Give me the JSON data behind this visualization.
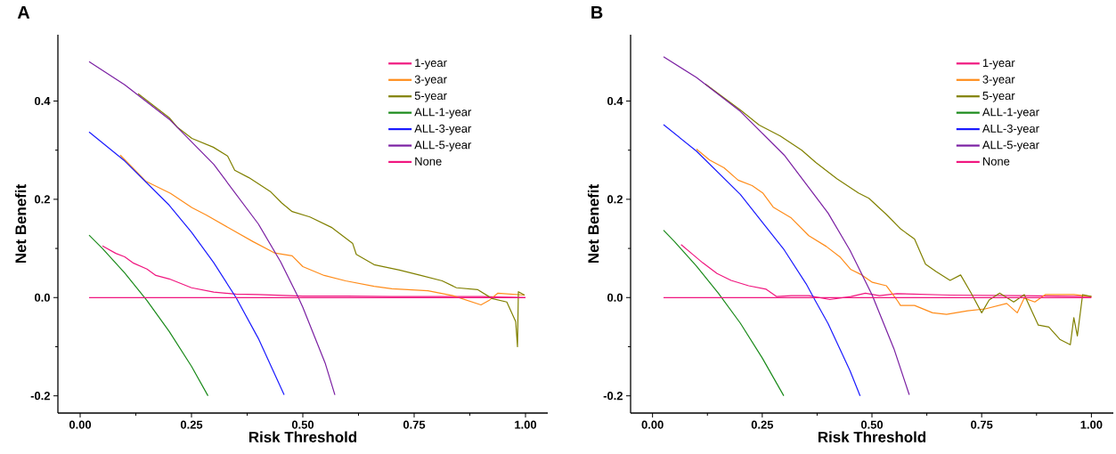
{
  "chart_data": [
    {
      "type": "line",
      "title": "A",
      "xlabel": "Risk Threshold",
      "ylabel": "Net Benefit",
      "xlim": [
        -0.05,
        1.05
      ],
      "ylim": [
        -0.235,
        0.535
      ],
      "xticks": [
        {
          "value": 0,
          "label": "0.00"
        },
        {
          "value": 0.25,
          "label": "0.25"
        },
        {
          "value": 0.5,
          "label": "0.50"
        },
        {
          "value": 0.75,
          "label": "0.75"
        },
        {
          "value": 1,
          "label": "1.00"
        }
      ],
      "yticks": [
        {
          "value": -0.2,
          "label": "-0.2"
        },
        {
          "value": 0,
          "label": "0.0"
        },
        {
          "value": 0.2,
          "label": "0.2"
        },
        {
          "value": 0.4,
          "label": "0.4"
        }
      ],
      "legend": "top right",
      "line_style": "solid",
      "marker": "none",
      "series": [
        {
          "name": "1-year",
          "color": "#f0167f",
          "x": [
            0.05,
            0.08,
            0.1,
            0.12,
            0.15,
            0.17,
            0.2,
            0.25,
            0.3,
            0.35,
            0.4,
            0.5,
            0.6,
            0.7,
            0.8,
            0.9,
            1.0
          ],
          "values": [
            0.105,
            0.09,
            0.083,
            0.07,
            0.058,
            0.045,
            0.038,
            0.02,
            0.011,
            0.007,
            0.006,
            0.003,
            0.003,
            0.002,
            0.002,
            0.002,
            0.0
          ]
        },
        {
          "name": "3-year",
          "color": "#ff8c1a",
          "x": [
            0.09,
            0.147,
            0.203,
            0.251,
            0.283,
            0.339,
            0.388,
            0.436,
            0.476,
            0.5,
            0.548,
            0.596,
            0.66,
            0.7,
            0.781,
            0.837,
            0.9,
            0.918,
            0.938,
            0.998
          ],
          "values": [
            0.29,
            0.237,
            0.212,
            0.183,
            0.168,
            0.139,
            0.114,
            0.091,
            0.085,
            0.063,
            0.045,
            0.034,
            0.023,
            0.018,
            0.014,
            0.004,
            -0.015,
            -0.006,
            0.009,
            0.005
          ]
        },
        {
          "name": "5-year",
          "color": "#808000",
          "x": [
            0.13,
            0.2,
            0.219,
            0.251,
            0.299,
            0.331,
            0.347,
            0.379,
            0.428,
            0.452,
            0.476,
            0.516,
            0.564,
            0.612,
            0.62,
            0.66,
            0.717,
            0.765,
            0.813,
            0.845,
            0.893,
            0.925,
            0.958,
            0.978,
            0.982,
            0.984,
            0.998
          ],
          "values": [
            0.415,
            0.366,
            0.346,
            0.324,
            0.306,
            0.288,
            0.259,
            0.244,
            0.215,
            0.193,
            0.175,
            0.164,
            0.143,
            0.11,
            0.088,
            0.067,
            0.056,
            0.045,
            0.034,
            0.02,
            0.016,
            -0.002,
            -0.009,
            -0.049,
            -0.1,
            0.012,
            0.005
          ]
        },
        {
          "name": "ALL-1-year",
          "color": "#1a8a1a",
          "x": [
            0.02,
            0.05,
            0.1,
            0.15,
            0.2,
            0.25,
            0.287
          ],
          "values": [
            0.127,
            0.1,
            0.05,
            -0.006,
            -0.069,
            -0.14,
            -0.2
          ]
        },
        {
          "name": "ALL-3-year",
          "color": "#1a1aff",
          "x": [
            0.02,
            0.1,
            0.2,
            0.25,
            0.3,
            0.35,
            0.4,
            0.45,
            0.458
          ],
          "values": [
            0.337,
            0.278,
            0.188,
            0.133,
            0.071,
            0.0,
            -0.083,
            -0.182,
            -0.198
          ]
        },
        {
          "name": "ALL-5-year",
          "color": "#7a1fa2",
          "x": [
            0.02,
            0.1,
            0.2,
            0.3,
            0.4,
            0.45,
            0.49,
            0.5,
            0.55,
            0.572
          ],
          "values": [
            0.48,
            0.433,
            0.363,
            0.271,
            0.15,
            0.073,
            0.0,
            -0.02,
            -0.133,
            -0.198
          ]
        },
        {
          "name": "None",
          "color": "#f0167f",
          "x": [
            0.02,
            1.0
          ],
          "values": [
            0.0,
            0.0
          ]
        }
      ]
    },
    {
      "type": "line",
      "title": "B",
      "xlabel": "Risk Threshold",
      "ylabel": "Net Benefit",
      "xlim": [
        -0.05,
        1.05
      ],
      "ylim": [
        -0.235,
        0.535
      ],
      "xticks": [
        {
          "value": 0,
          "label": "0.00"
        },
        {
          "value": 0.25,
          "label": "0.25"
        },
        {
          "value": 0.5,
          "label": "0.50"
        },
        {
          "value": 0.75,
          "label": "0.75"
        },
        {
          "value": 1,
          "label": "1.00"
        }
      ],
      "yticks": [
        {
          "value": -0.2,
          "label": "-0.2"
        },
        {
          "value": 0,
          "label": "0.0"
        },
        {
          "value": 0.2,
          "label": "0.2"
        },
        {
          "value": 0.4,
          "label": "0.4"
        }
      ],
      "legend": "top right",
      "line_style": "solid",
      "marker": "none",
      "series": [
        {
          "name": "1-year",
          "color": "#f0167f",
          "x": [
            0.065,
            0.09,
            0.114,
            0.147,
            0.179,
            0.219,
            0.259,
            0.283,
            0.316,
            0.356,
            0.404,
            0.452,
            0.485,
            0.517,
            0.557,
            0.678,
            0.839,
            1.0
          ],
          "values": [
            0.108,
            0.089,
            0.071,
            0.049,
            0.035,
            0.024,
            0.017,
            0.002,
            0.004,
            0.004,
            -0.004,
            0.002,
            0.009,
            0.004,
            0.008,
            0.005,
            0.004,
            0.002
          ]
        },
        {
          "name": "3-year",
          "color": "#ff8c1a",
          "x": [
            0.1,
            0.13,
            0.163,
            0.195,
            0.227,
            0.251,
            0.275,
            0.316,
            0.356,
            0.396,
            0.428,
            0.452,
            0.477,
            0.501,
            0.533,
            0.557,
            0.565,
            0.597,
            0.638,
            0.67,
            0.718,
            0.758,
            0.807,
            0.831,
            0.847,
            0.871,
            0.895,
            0.96,
            1.0
          ],
          "values": [
            0.302,
            0.28,
            0.264,
            0.239,
            0.228,
            0.213,
            0.184,
            0.162,
            0.126,
            0.104,
            0.082,
            0.057,
            0.046,
            0.031,
            0.024,
            -0.005,
            -0.016,
            -0.016,
            -0.031,
            -0.034,
            -0.027,
            -0.023,
            -0.012,
            -0.031,
            -0.001,
            -0.009,
            0.006,
            0.006,
            0.002
          ]
        },
        {
          "name": "5-year",
          "color": "#808000",
          "x": [
            0.12,
            0.2,
            0.243,
            0.291,
            0.34,
            0.372,
            0.42,
            0.469,
            0.493,
            0.533,
            0.565,
            0.597,
            0.622,
            0.646,
            0.678,
            0.702,
            0.726,
            0.75,
            0.767,
            0.791,
            0.823,
            0.847,
            0.879,
            0.903,
            0.928,
            0.952,
            0.96,
            0.968,
            0.98,
            1.0
          ],
          "values": [
            0.435,
            0.382,
            0.351,
            0.329,
            0.3,
            0.275,
            0.242,
            0.213,
            0.202,
            0.169,
            0.14,
            0.119,
            0.068,
            0.053,
            0.035,
            0.046,
            0.009,
            -0.031,
            -0.005,
            0.009,
            -0.009,
            0.006,
            -0.056,
            -0.06,
            -0.085,
            -0.096,
            -0.041,
            -0.078,
            0.006,
            0.002
          ]
        },
        {
          "name": "ALL-1-year",
          "color": "#1a8a1a",
          "x": [
            0.025,
            0.05,
            0.1,
            0.15,
            0.2,
            0.25,
            0.299
          ],
          "values": [
            0.137,
            0.114,
            0.064,
            0.009,
            -0.052,
            -0.123,
            -0.2
          ]
        },
        {
          "name": "ALL-3-year",
          "color": "#1a1aff",
          "x": [
            0.025,
            0.1,
            0.2,
            0.3,
            0.35,
            0.37,
            0.4,
            0.45,
            0.473
          ],
          "values": [
            0.352,
            0.298,
            0.21,
            0.097,
            0.028,
            -0.005,
            -0.053,
            -0.149,
            -0.2
          ]
        },
        {
          "name": "ALL-5-year",
          "color": "#7a1fa2",
          "x": [
            0.025,
            0.1,
            0.2,
            0.3,
            0.4,
            0.45,
            0.5,
            0.55,
            0.585
          ],
          "values": [
            0.49,
            0.448,
            0.379,
            0.29,
            0.172,
            0.096,
            0.006,
            -0.104,
            -0.198
          ]
        },
        {
          "name": "None",
          "color": "#f0167f",
          "x": [
            0.025,
            1.0
          ],
          "values": [
            0.0,
            0.0
          ]
        }
      ]
    }
  ]
}
